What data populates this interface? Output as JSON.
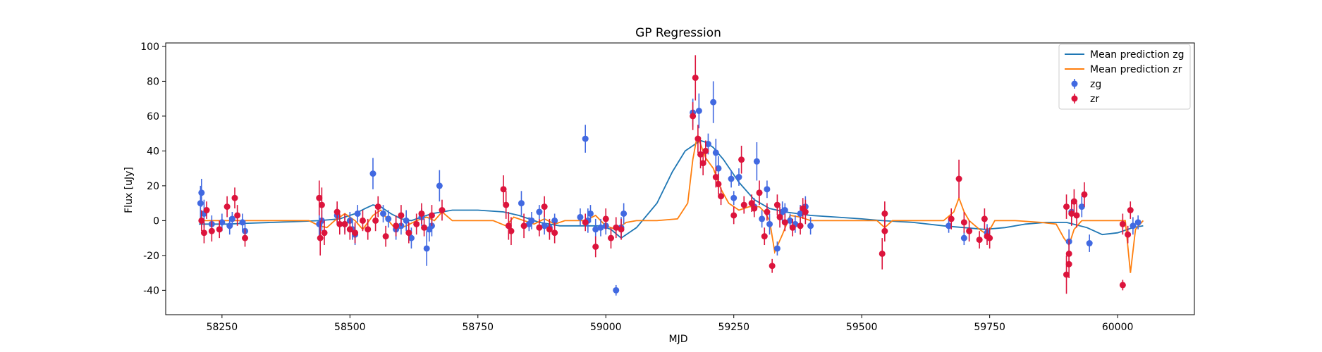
{
  "chart_data": {
    "type": "scatter",
    "title": "GP Regression",
    "xlabel": "MJD",
    "ylabel": "Flux [uJy]",
    "xlim": [
      58140,
      60150
    ],
    "ylim": [
      -54,
      102
    ],
    "xticks": [
      58250,
      58500,
      58750,
      59000,
      59250,
      59500,
      59750,
      60000
    ],
    "yticks": [
      -40,
      -20,
      0,
      20,
      40,
      60,
      80,
      100
    ],
    "grid": false,
    "legend_position": "top-right",
    "colors": {
      "zg_line": "#1f77b4",
      "zr_line": "#ff7f0e",
      "zg_points": "#4169e1",
      "zr_points": "#dc143c"
    },
    "lines": [
      {
        "name": "Mean prediction zg",
        "color": "#1f77b4",
        "x": [
          58205,
          58260,
          58300,
          58350,
          58400,
          58440,
          58480,
          58510,
          58530,
          58545,
          58560,
          58580,
          58600,
          58620,
          58640,
          58660,
          58680,
          58700,
          58750,
          58800,
          58830,
          58850,
          58870,
          58890,
          58910,
          58930,
          58950,
          58970,
          58990,
          59010,
          59030,
          59060,
          59100,
          59130,
          59155,
          59175,
          59185,
          59195,
          59210,
          59230,
          59260,
          59290,
          59320,
          59350,
          59400,
          59450,
          59500,
          59540,
          59600,
          59660,
          59700,
          59740,
          59780,
          59820,
          59860,
          59900,
          59940,
          59970,
          60000,
          60030,
          60050
        ],
        "y": [
          -2,
          -2,
          -1.5,
          -1,
          -0.5,
          0,
          1,
          4,
          7,
          9,
          8,
          4,
          1,
          0,
          2,
          4,
          5,
          6,
          6,
          5,
          3,
          1,
          -1,
          -2,
          -3,
          -3,
          -3,
          -3,
          -3,
          -5,
          -10,
          -4,
          10,
          28,
          40,
          44,
          46,
          45,
          42,
          35,
          22,
          12,
          7,
          5,
          3,
          2,
          1,
          0,
          -1,
          -3,
          -4,
          -5,
          -4,
          -2,
          -1,
          -1,
          -4,
          -8,
          -7,
          -4,
          -3
        ]
      },
      {
        "name": "Mean prediction zr",
        "color": "#ff7f0e",
        "x": [
          58205,
          58240,
          58270,
          58300,
          58360,
          58420,
          58440,
          58455,
          58470,
          58490,
          58510,
          58525,
          58545,
          58560,
          58575,
          58590,
          58610,
          58630,
          58650,
          58665,
          58680,
          58700,
          58740,
          58780,
          58805,
          58820,
          58840,
          58860,
          58880,
          58900,
          58920,
          58940,
          58960,
          58980,
          59000,
          59020,
          59040,
          59060,
          59100,
          59140,
          59160,
          59170,
          59178,
          59185,
          59195,
          59210,
          59225,
          59240,
          59260,
          59280,
          59300,
          59310,
          59320,
          59330,
          59345,
          59360,
          59380,
          59400,
          59450,
          59500,
          59530,
          59545,
          59560,
          59620,
          59660,
          59680,
          59690,
          59700,
          59710,
          59730,
          59745,
          59760,
          59800,
          59850,
          59880,
          59895,
          59905,
          59915,
          59930,
          59960,
          60000,
          60015,
          60025,
          60035,
          60050
        ],
        "y": [
          0,
          0,
          0,
          0,
          0,
          0,
          -3,
          -4,
          0,
          4,
          0,
          -5,
          3,
          6,
          0,
          -5,
          -3,
          0,
          2,
          0,
          5,
          0,
          0,
          0,
          -3,
          2,
          0,
          -2,
          1,
          -2,
          0,
          0,
          0,
          3,
          -3,
          -5,
          -1,
          0,
          0,
          1,
          10,
          35,
          48,
          44,
          36,
          30,
          18,
          10,
          6,
          8,
          8,
          5,
          0,
          -18,
          -8,
          3,
          2,
          0,
          0,
          0,
          0,
          -4,
          0,
          0,
          0,
          5,
          13,
          5,
          0,
          -5,
          -8,
          0,
          0,
          -1,
          -2,
          -10,
          -14,
          -5,
          0,
          0,
          0,
          0,
          -30,
          -5,
          0
        ]
      }
    ],
    "series": [
      {
        "name": "zg",
        "color": "#4169e1",
        "points": [
          [
            58210,
            16,
            8
          ],
          [
            58208,
            10,
            10
          ],
          [
            58215,
            4,
            8
          ],
          [
            58230,
            -2,
            5
          ],
          [
            58250,
            -1,
            5
          ],
          [
            58270,
            1,
            4
          ],
          [
            58265,
            -3,
            5
          ],
          [
            58290,
            -1,
            5
          ],
          [
            58295,
            -6,
            6
          ],
          [
            58440,
            -2,
            8
          ],
          [
            58445,
            0,
            6
          ],
          [
            58475,
            3,
            5
          ],
          [
            58490,
            -2,
            5
          ],
          [
            58500,
            0,
            5
          ],
          [
            58505,
            -5,
            6
          ],
          [
            58510,
            -8,
            6
          ],
          [
            58515,
            4,
            5
          ],
          [
            58545,
            27,
            9
          ],
          [
            58565,
            4,
            5
          ],
          [
            58575,
            1,
            5
          ],
          [
            58590,
            -5,
            6
          ],
          [
            58600,
            -3,
            5
          ],
          [
            58610,
            0,
            6
          ],
          [
            58620,
            -10,
            6
          ],
          [
            58640,
            2,
            5
          ],
          [
            58650,
            -16,
            10
          ],
          [
            58655,
            -5,
            7
          ],
          [
            58660,
            -3,
            6
          ],
          [
            58675,
            20,
            9
          ],
          [
            58835,
            10,
            7
          ],
          [
            58850,
            -2,
            4
          ],
          [
            58855,
            0,
            5
          ],
          [
            58870,
            5,
            4
          ],
          [
            58880,
            -3,
            5
          ],
          [
            58890,
            -4,
            4
          ],
          [
            58900,
            0,
            4
          ],
          [
            58950,
            2,
            5
          ],
          [
            58960,
            47,
            8
          ],
          [
            58965,
            0,
            7
          ],
          [
            58970,
            4,
            5
          ],
          [
            58980,
            -5,
            6
          ],
          [
            58990,
            -4,
            5
          ],
          [
            59000,
            -3,
            5
          ],
          [
            59020,
            -40,
            3
          ],
          [
            59030,
            -4,
            6
          ],
          [
            59035,
            4,
            6
          ],
          [
            59170,
            62,
            8
          ],
          [
            59182,
            63,
            10
          ],
          [
            59200,
            44,
            6
          ],
          [
            59210,
            68,
            12
          ],
          [
            59215,
            39,
            8
          ],
          [
            59220,
            30,
            7
          ],
          [
            59245,
            24,
            5
          ],
          [
            59250,
            13,
            4
          ],
          [
            59260,
            25,
            5
          ],
          [
            59290,
            8,
            5
          ],
          [
            59295,
            34,
            11
          ],
          [
            59305,
            1,
            5
          ],
          [
            59315,
            18,
            5
          ],
          [
            59320,
            -2,
            6
          ],
          [
            59335,
            -16,
            4
          ],
          [
            59345,
            5,
            6
          ],
          [
            59350,
            6,
            4
          ],
          [
            59360,
            0,
            4
          ],
          [
            59370,
            -2,
            5
          ],
          [
            59380,
            4,
            5
          ],
          [
            59390,
            8,
            6
          ],
          [
            59400,
            -3,
            5
          ],
          [
            59670,
            -3,
            4
          ],
          [
            59700,
            -10,
            4
          ],
          [
            59745,
            -7,
            5
          ],
          [
            59905,
            -12,
            7
          ],
          [
            59910,
            5,
            7
          ],
          [
            59930,
            8,
            6
          ],
          [
            59945,
            -13,
            5
          ],
          [
            60030,
            -3,
            5
          ],
          [
            60040,
            -1,
            4
          ]
        ]
      },
      {
        "name": "zr",
        "color": "#dc143c",
        "points": [
          [
            58210,
            0,
            6
          ],
          [
            58215,
            -7,
            6
          ],
          [
            58220,
            6,
            5
          ],
          [
            58230,
            -6,
            6
          ],
          [
            58245,
            -5,
            5
          ],
          [
            58260,
            8,
            6
          ],
          [
            58275,
            13,
            6
          ],
          [
            58280,
            3,
            6
          ],
          [
            58295,
            -10,
            5
          ],
          [
            58440,
            13,
            10
          ],
          [
            58442,
            -10,
            10
          ],
          [
            58445,
            9,
            10
          ],
          [
            58450,
            -7,
            7
          ],
          [
            58475,
            5,
            6
          ],
          [
            58480,
            -2,
            6
          ],
          [
            58490,
            -2,
            6
          ],
          [
            58500,
            -5,
            6
          ],
          [
            58510,
            -7,
            6
          ],
          [
            58525,
            0,
            6
          ],
          [
            58535,
            -5,
            6
          ],
          [
            58550,
            0,
            6
          ],
          [
            58555,
            8,
            6
          ],
          [
            58570,
            -9,
            6
          ],
          [
            58590,
            -3,
            6
          ],
          [
            58600,
            3,
            6
          ],
          [
            58615,
            -7,
            6
          ],
          [
            58630,
            -2,
            6
          ],
          [
            58640,
            4,
            6
          ],
          [
            58645,
            -4,
            5
          ],
          [
            58660,
            3,
            6
          ],
          [
            58680,
            6,
            6
          ],
          [
            58800,
            18,
            8
          ],
          [
            58805,
            9,
            8
          ],
          [
            58810,
            -3,
            8
          ],
          [
            58815,
            -6,
            8
          ],
          [
            58840,
            -3,
            7
          ],
          [
            58870,
            -4,
            5
          ],
          [
            58880,
            8,
            6
          ],
          [
            58890,
            -5,
            6
          ],
          [
            58900,
            -7,
            6
          ],
          [
            58960,
            -1,
            5
          ],
          [
            58980,
            -15,
            6
          ],
          [
            59000,
            1,
            6
          ],
          [
            59010,
            -10,
            6
          ],
          [
            59020,
            -4,
            6
          ],
          [
            59030,
            -5,
            6
          ],
          [
            59170,
            60,
            8
          ],
          [
            59175,
            82,
            13
          ],
          [
            59180,
            47,
            8
          ],
          [
            59185,
            38,
            8
          ],
          [
            59190,
            33,
            7
          ],
          [
            59195,
            40,
            6
          ],
          [
            59215,
            25,
            6
          ],
          [
            59220,
            21,
            6
          ],
          [
            59225,
            14,
            5
          ],
          [
            59250,
            3,
            5
          ],
          [
            59265,
            35,
            8
          ],
          [
            59270,
            9,
            5
          ],
          [
            59285,
            10,
            5
          ],
          [
            59290,
            7,
            5
          ],
          [
            59300,
            16,
            7
          ],
          [
            59310,
            -9,
            5
          ],
          [
            59315,
            5,
            5
          ],
          [
            59325,
            -26,
            4
          ],
          [
            59335,
            9,
            6
          ],
          [
            59340,
            2,
            6
          ],
          [
            59350,
            -1,
            5
          ],
          [
            59365,
            -4,
            5
          ],
          [
            59380,
            -3,
            5
          ],
          [
            59385,
            7,
            6
          ],
          [
            59390,
            5,
            7
          ],
          [
            59540,
            -19,
            9
          ],
          [
            59545,
            4,
            7
          ],
          [
            59545,
            -6,
            6
          ],
          [
            59675,
            1,
            6
          ],
          [
            59690,
            24,
            11
          ],
          [
            59700,
            -1,
            6
          ],
          [
            59710,
            -6,
            6
          ],
          [
            59730,
            -11,
            5
          ],
          [
            59740,
            1,
            6
          ],
          [
            59745,
            -9,
            5
          ],
          [
            59750,
            -10,
            6
          ],
          [
            59900,
            -31,
            11
          ],
          [
            59905,
            -25,
            8
          ],
          [
            59905,
            -19,
            8
          ],
          [
            59900,
            8,
            7
          ],
          [
            59910,
            4,
            7
          ],
          [
            59915,
            11,
            7
          ],
          [
            59920,
            3,
            7
          ],
          [
            59935,
            15,
            7
          ],
          [
            60010,
            -2,
            6
          ],
          [
            60010,
            -37,
            3
          ],
          [
            60020,
            -8,
            5
          ],
          [
            60025,
            6,
            5
          ]
        ]
      }
    ]
  }
}
